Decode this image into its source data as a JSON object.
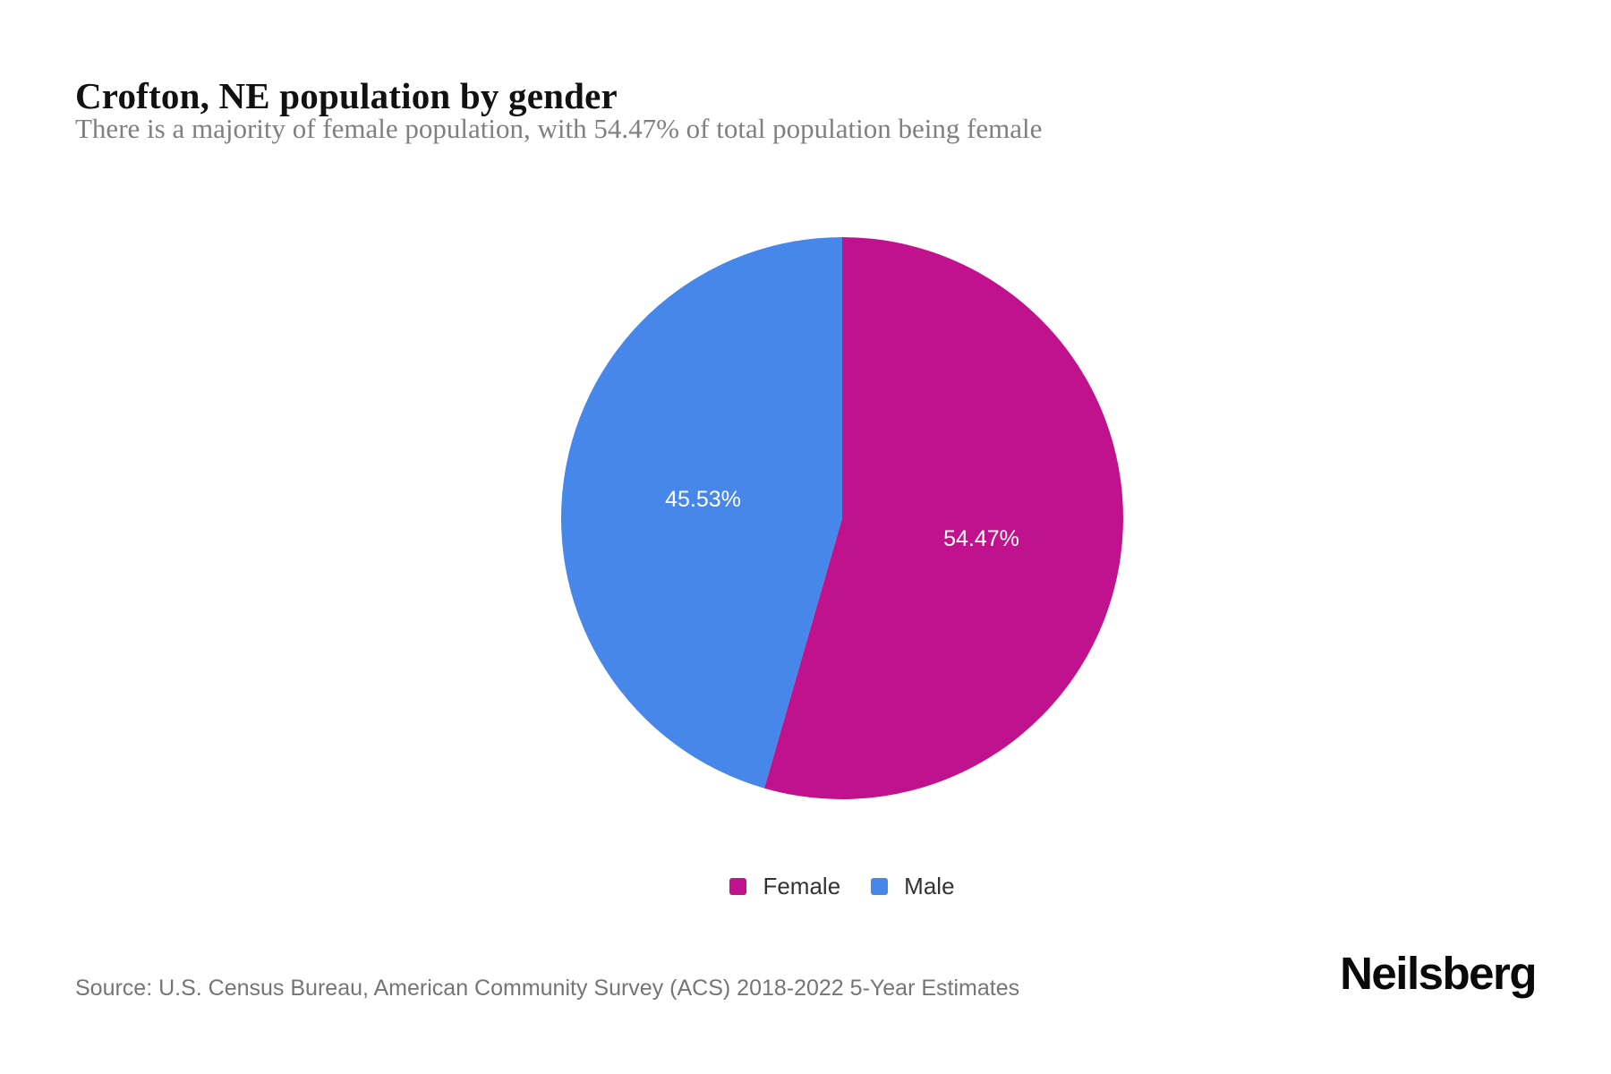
{
  "page": {
    "title": "Crofton, NE population by gender",
    "subtitle": "There is a majority of female population, with 54.47% of total population being female",
    "source": "Source: U.S. Census Bureau, American Community Survey (ACS) 2018-2022 5-Year Estimates",
    "brand": "Neilsberg"
  },
  "chart_data": {
    "type": "pie",
    "title": "Crofton, NE population by gender",
    "start_angle_deg": 0,
    "direction": "clockwise",
    "legend_position": "bottom",
    "label_color": "#ffffff",
    "label_radius_ratio": 0.5,
    "slices": [
      {
        "label": "Female",
        "value": 54.47,
        "display": "54.47%",
        "color": "#c0128c"
      },
      {
        "label": "Male",
        "value": 45.53,
        "display": "45.53%",
        "color": "#4787e9"
      }
    ]
  }
}
